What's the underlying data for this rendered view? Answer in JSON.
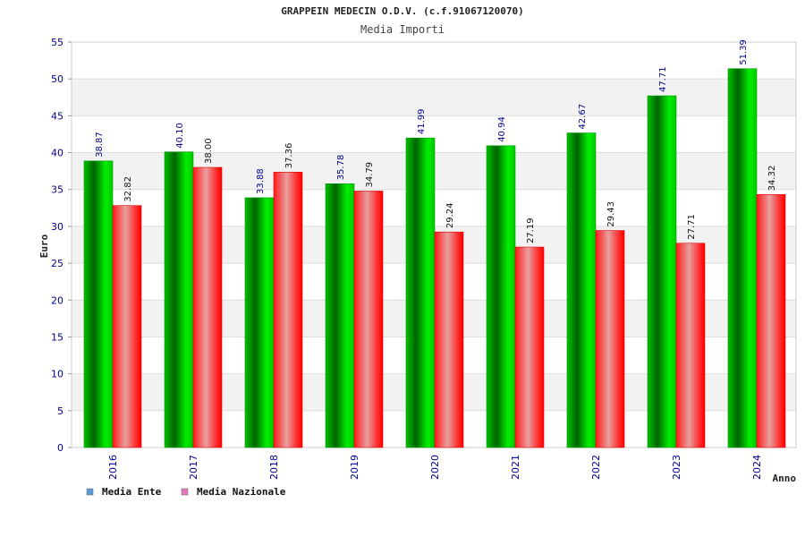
{
  "chart_data": {
    "type": "bar",
    "title": "GRAPPEIN MEDECIN O.D.V. (c.f.91067120070)",
    "subtitle": "Media Importi",
    "xlabel": "Anno",
    "ylabel": "Euro",
    "ylim": [
      0,
      55
    ],
    "yticks": [
      "0",
      "5",
      "10",
      "15",
      "20",
      "25",
      "30",
      "35",
      "40",
      "45",
      "50",
      "55"
    ],
    "categories": [
      "2016",
      "2017",
      "2018",
      "2019",
      "2020",
      "2021",
      "2022",
      "2023",
      "2024"
    ],
    "series": [
      {
        "name": "Media Ente",
        "values": [
          38.87,
          40.1,
          33.88,
          35.78,
          41.99,
          40.94,
          42.67,
          47.71,
          51.39
        ],
        "labels": [
          "38.87",
          "40.10",
          "33.88",
          "35.78",
          "41.99",
          "40.94",
          "42.67",
          "47.71",
          "51.39"
        ],
        "color": "#00c000",
        "legend_color": "#5b9bd5"
      },
      {
        "name": "Media Nazionale",
        "values": [
          32.82,
          38.0,
          37.36,
          34.79,
          29.24,
          27.19,
          29.43,
          27.71,
          34.32
        ],
        "labels": [
          "32.82",
          "38.00",
          "37.36",
          "34.79",
          "29.24",
          "27.19",
          "29.43",
          "27.71",
          "34.32"
        ],
        "color": "#ff1a1a",
        "legend_color": "#e07ab8"
      }
    ],
    "grid": true,
    "legend_position": "bottom-left"
  }
}
